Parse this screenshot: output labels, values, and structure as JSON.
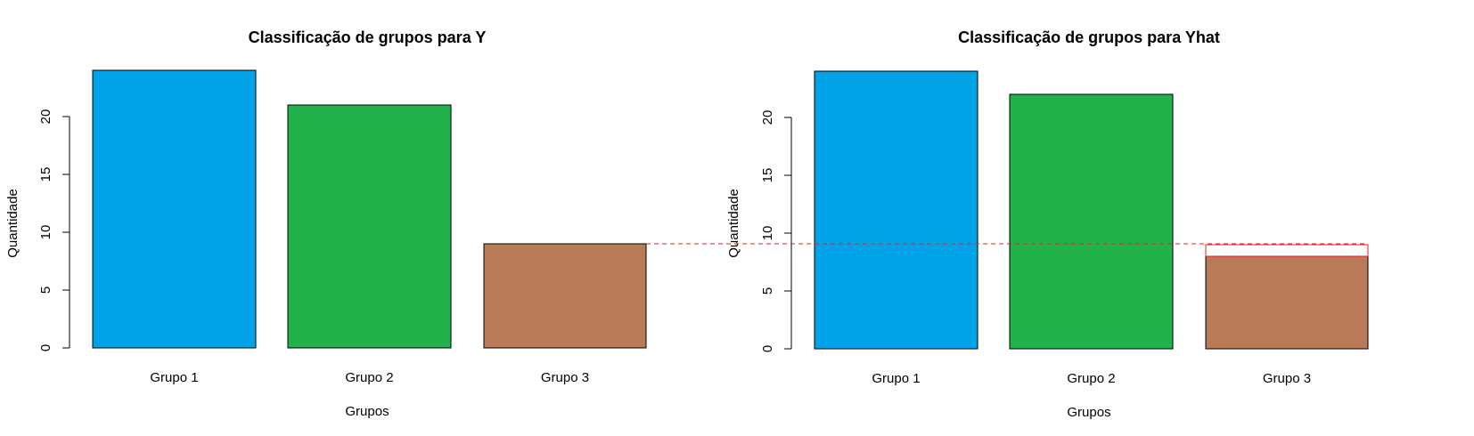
{
  "chart_data": [
    {
      "type": "bar",
      "title": "Classificação de grupos para Y",
      "xlabel": "Grupos",
      "ylabel": "Quantidade",
      "categories": [
        "Grupo 1",
        "Grupo 2",
        "Grupo 3"
      ],
      "values": [
        24,
        21,
        9
      ],
      "colors": [
        "#00A3E8",
        "#22B24C",
        "#B97A57"
      ],
      "ylim": [
        0,
        24
      ],
      "yticks": [
        0,
        5,
        10,
        15,
        20
      ],
      "grid": false,
      "legend": "none"
    },
    {
      "type": "bar",
      "title": "Classificação de grupos para Yhat",
      "xlabel": "Grupos",
      "ylabel": "Quantidade",
      "categories": [
        "Grupo 1",
        "Grupo 2",
        "Grupo 3"
      ],
      "values": [
        24,
        22,
        8
      ],
      "colors": [
        "#00A3E8",
        "#22B24C",
        "#B97A57"
      ],
      "ylim": [
        0,
        24
      ],
      "yticks": [
        0,
        5,
        10,
        15,
        20
      ],
      "grid": false,
      "legend": "none"
    }
  ],
  "annotations": {
    "reference_line_value": 9,
    "reference_line_color": "#E8202A",
    "reference_box_category": "Grupo 3"
  }
}
